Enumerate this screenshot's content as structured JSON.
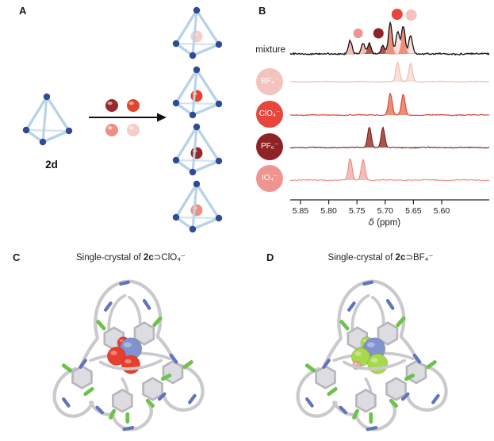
{
  "panel_a": {
    "label": "A",
    "cage_label": "2d",
    "tetrahedron": {
      "edge_color": "#b7d3e8",
      "back_edge_color": "#d6e4f0",
      "vertex_color": "#2d4b97"
    },
    "anion_spheres": [
      {
        "species": "PF₆⁻",
        "color": "#97292b"
      },
      {
        "species": "ClO₄⁻",
        "color": "#e1462f"
      },
      {
        "species": "IO₄⁻",
        "color": "#ef8e85"
      },
      {
        "species": "BF₄⁻",
        "color": "#f7cdc7"
      }
    ],
    "product_guest_colors": [
      "#f7cdc7",
      "#e1462f",
      "#97292b",
      "#ef8e85"
    ]
  },
  "panel_b": {
    "label": "B"
  },
  "chart_data": {
    "type": "line",
    "title": "",
    "mixture_label": "mixture",
    "xlabel_symbol": "δ",
    "xlabel_unit": "(ppm)",
    "x_ticks": [
      5.85,
      5.8,
      5.75,
      5.7,
      5.65,
      5.6
    ],
    "x_tick_labels": [
      "5.85",
      "5.80",
      "5.75",
      "5.70",
      "5.65",
      "5.60"
    ],
    "x_axis_reversed": true,
    "x_range": [
      5.87,
      5.52
    ],
    "rows": [
      "mixture",
      "BF₄⁻",
      "ClO₄⁻",
      "PF₆⁻",
      "IO₄⁻"
    ],
    "envelope_color": "#151515",
    "species": [
      {
        "id": "BF4",
        "label": "BF₄⁻",
        "badge_color": "#f3c3bd",
        "line_color": "#eeb9b1",
        "fill_color": "#fae0dc",
        "peaks_ppm": [
          5.678,
          5.655
        ],
        "row_peak_heights": [
          25,
          23
        ],
        "mixture_peak_heights": [
          28,
          24
        ]
      },
      {
        "id": "ClO4",
        "label": "ClO₄⁻",
        "badge_color": "#e8453c",
        "line_color": "#d8402f",
        "fill_color": "#ef8d76",
        "peaks_ppm": [
          5.691,
          5.668
        ],
        "row_peak_heights": [
          27,
          26
        ],
        "mixture_peak_heights": [
          40,
          35
        ]
      },
      {
        "id": "PF6",
        "label": "PF₆⁻",
        "badge_color": "#8e2227",
        "line_color": "#7f1f1e",
        "fill_color": "#a9554d",
        "peaks_ppm": [
          5.728,
          5.704
        ],
        "row_peak_heights": [
          26,
          25
        ],
        "mixture_peak_heights": [
          13,
          11
        ]
      },
      {
        "id": "IO4",
        "label": "IO₄⁻",
        "badge_color": "#f09490",
        "line_color": "#ec8b82",
        "fill_color": "#f6bcb6",
        "peaks_ppm": [
          5.762,
          5.739
        ],
        "row_peak_heights": [
          27,
          26
        ],
        "mixture_peak_heights": [
          17,
          13
        ]
      }
    ],
    "mixture_dots": [
      {
        "species": "IO4",
        "ppm": 5.748,
        "y": 42,
        "r": 6
      },
      {
        "species": "PF6",
        "ppm": 5.712,
        "y": 42,
        "r": 6.5
      },
      {
        "species": "ClO4",
        "ppm": 5.679,
        "y": 18,
        "r": 7
      },
      {
        "species": "BF4",
        "ppm": 5.654,
        "y": 19,
        "r": 7
      }
    ]
  },
  "molecule": {
    "carbon_color": "#c9c9ce",
    "ring_fill": "#dcdce1",
    "ring_stroke": "#b6b6bd",
    "nitrogen_color": "#5f74bd",
    "fluorine_color": "#6cc24a"
  },
  "panel_c": {
    "label": "C",
    "title_prefix": "Single-crystal of ",
    "title_bold": "2c",
    "title_suffix": "⊃ClO₄⁻",
    "guest_colors": {
      "center": "#8193ce",
      "main": "#e63f2e"
    }
  },
  "panel_d": {
    "label": "D",
    "title_prefix": "Single-crystal of ",
    "title_bold": "2c",
    "title_suffix": "⊃BF₄⁻",
    "guest_colors": {
      "center": "#8193ce",
      "main": "#a8d84b",
      "minor": "#f2a3a0"
    }
  }
}
